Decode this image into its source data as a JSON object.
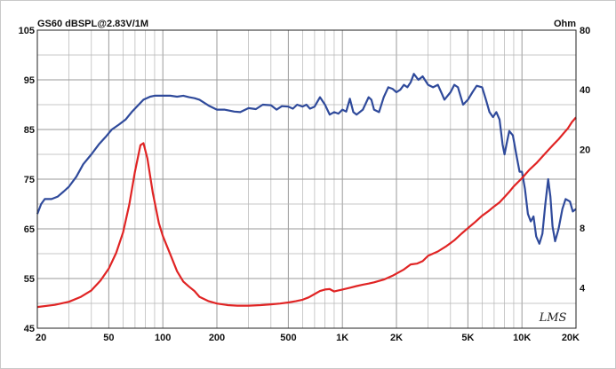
{
  "chart_data": {
    "type": "line",
    "title": "GS60 dBSPL@2.83V/1M",
    "right_axis_unit": "Ohm",
    "watermark": "LMS",
    "x_scale": "log",
    "xlim": [
      20,
      20000
    ],
    "ylim": [
      45,
      105
    ],
    "y2lim": [
      2.5,
      80
    ],
    "y2_scale": "log",
    "grid": true,
    "x_ticks": [
      {
        "value": 20,
        "label": "20"
      },
      {
        "value": 50,
        "label": "50"
      },
      {
        "value": 100,
        "label": "100"
      },
      {
        "value": 200,
        "label": "200"
      },
      {
        "value": 500,
        "label": "500"
      },
      {
        "value": 1000,
        "label": "1K"
      },
      {
        "value": 2000,
        "label": "2K"
      },
      {
        "value": 5000,
        "label": "5K"
      },
      {
        "value": 10000,
        "label": "10K"
      },
      {
        "value": 20000,
        "label": "20K"
      }
    ],
    "y_ticks": [
      {
        "value": 45,
        "label": "45"
      },
      {
        "value": 55,
        "label": "55"
      },
      {
        "value": 65,
        "label": "65"
      },
      {
        "value": 75,
        "label": "75"
      },
      {
        "value": 85,
        "label": "85"
      },
      {
        "value": 95,
        "label": "95"
      },
      {
        "value": 105,
        "label": "105"
      }
    ],
    "y2_ticks": [
      {
        "value": 4,
        "label": "4"
      },
      {
        "value": 8,
        "label": "8"
      },
      {
        "value": 20,
        "label": "20"
      },
      {
        "value": 40,
        "label": "40"
      },
      {
        "value": 80,
        "label": "80"
      }
    ],
    "colors": {
      "spl": "#2f4a9b",
      "impedance": "#e02424",
      "grid": "#b4b4b4",
      "axis": "#222222"
    },
    "series": [
      {
        "axis": "left",
        "points": [
          [
            20,
            68
          ],
          [
            21,
            70
          ],
          [
            22,
            71
          ],
          [
            24,
            71
          ],
          [
            26,
            71.5
          ],
          [
            28,
            72.5
          ],
          [
            30,
            73.5
          ],
          [
            33,
            75.5
          ],
          [
            36,
            78
          ],
          [
            40,
            80
          ],
          [
            44,
            82
          ],
          [
            48,
            83.5
          ],
          [
            52,
            85
          ],
          [
            57,
            86
          ],
          [
            62,
            87
          ],
          [
            67,
            88.5
          ],
          [
            72,
            89.7
          ],
          [
            78,
            91
          ],
          [
            85,
            91.6
          ],
          [
            90,
            91.8
          ],
          [
            100,
            91.8
          ],
          [
            110,
            91.8
          ],
          [
            120,
            91.6
          ],
          [
            130,
            91.8
          ],
          [
            140,
            91.5
          ],
          [
            150,
            91.3
          ],
          [
            160,
            91
          ],
          [
            180,
            89.8
          ],
          [
            200,
            89
          ],
          [
            220,
            89
          ],
          [
            250,
            88.6
          ],
          [
            270,
            88.5
          ],
          [
            300,
            89.3
          ],
          [
            330,
            89.1
          ],
          [
            360,
            90
          ],
          [
            400,
            89.9
          ],
          [
            430,
            89
          ],
          [
            460,
            89.7
          ],
          [
            500,
            89.6
          ],
          [
            530,
            89.2
          ],
          [
            560,
            90
          ],
          [
            600,
            89.6
          ],
          [
            630,
            90
          ],
          [
            660,
            89.2
          ],
          [
            700,
            89.6
          ],
          [
            750,
            91.5
          ],
          [
            800,
            90
          ],
          [
            850,
            88
          ],
          [
            900,
            88.5
          ],
          [
            950,
            88.2
          ],
          [
            1000,
            89
          ],
          [
            1050,
            88.6
          ],
          [
            1100,
            91.2
          ],
          [
            1150,
            88.5
          ],
          [
            1200,
            88
          ],
          [
            1300,
            89
          ],
          [
            1400,
            91.5
          ],
          [
            1450,
            91
          ],
          [
            1500,
            89
          ],
          [
            1600,
            88.5
          ],
          [
            1700,
            91.5
          ],
          [
            1800,
            93.5
          ],
          [
            1900,
            93.2
          ],
          [
            2000,
            92.5
          ],
          [
            2100,
            93
          ],
          [
            2200,
            94
          ],
          [
            2300,
            93.5
          ],
          [
            2400,
            94.5
          ],
          [
            2500,
            96.2
          ],
          [
            2650,
            95
          ],
          [
            2800,
            95.7
          ],
          [
            3000,
            94
          ],
          [
            3200,
            93.5
          ],
          [
            3400,
            94
          ],
          [
            3600,
            92
          ],
          [
            3700,
            91
          ],
          [
            3800,
            91.5
          ],
          [
            4000,
            92.5
          ],
          [
            4200,
            94
          ],
          [
            4400,
            93.5
          ],
          [
            4700,
            90
          ],
          [
            5000,
            91
          ],
          [
            5300,
            92.5
          ],
          [
            5600,
            93.8
          ],
          [
            6000,
            93.5
          ],
          [
            6300,
            91
          ],
          [
            6600,
            88.5
          ],
          [
            6900,
            87.5
          ],
          [
            7200,
            88.5
          ],
          [
            7500,
            87
          ],
          [
            7800,
            82
          ],
          [
            8000,
            80
          ],
          [
            8200,
            82
          ],
          [
            8500,
            84.7
          ],
          [
            8900,
            83.8
          ],
          [
            9300,
            80
          ],
          [
            9700,
            76.5
          ],
          [
            10000,
            76.5
          ],
          [
            10400,
            73
          ],
          [
            10800,
            68
          ],
          [
            11200,
            66.5
          ],
          [
            11600,
            67.5
          ],
          [
            12000,
            63.5
          ],
          [
            12500,
            62
          ],
          [
            13000,
            64
          ],
          [
            13500,
            70
          ],
          [
            14000,
            75
          ],
          [
            14400,
            71.5
          ],
          [
            14800,
            65.5
          ],
          [
            15300,
            62.5
          ],
          [
            16000,
            65
          ],
          [
            16800,
            69
          ],
          [
            17500,
            71
          ],
          [
            18500,
            70.5
          ],
          [
            19200,
            68.5
          ],
          [
            20000,
            69
          ]
        ]
      },
      {
        "axis": "right",
        "points": [
          [
            20,
            3.2
          ],
          [
            25,
            3.28
          ],
          [
            30,
            3.4
          ],
          [
            35,
            3.6
          ],
          [
            40,
            3.88
          ],
          [
            45,
            4.35
          ],
          [
            50,
            5
          ],
          [
            55,
            6
          ],
          [
            60,
            7.6
          ],
          [
            65,
            10.5
          ],
          [
            70,
            15.5
          ],
          [
            75,
            21
          ],
          [
            78,
            21.5
          ],
          [
            82,
            18
          ],
          [
            88,
            12
          ],
          [
            95,
            8.5
          ],
          [
            100,
            7.3
          ],
          [
            110,
            5.9
          ],
          [
            120,
            4.85
          ],
          [
            130,
            4.3
          ],
          [
            140,
            4.05
          ],
          [
            150,
            3.85
          ],
          [
            160,
            3.6
          ],
          [
            180,
            3.42
          ],
          [
            200,
            3.33
          ],
          [
            230,
            3.27
          ],
          [
            260,
            3.25
          ],
          [
            300,
            3.25
          ],
          [
            350,
            3.27
          ],
          [
            400,
            3.3
          ],
          [
            450,
            3.33
          ],
          [
            500,
            3.37
          ],
          [
            550,
            3.42
          ],
          [
            600,
            3.48
          ],
          [
            650,
            3.58
          ],
          [
            700,
            3.72
          ],
          [
            750,
            3.85
          ],
          [
            800,
            3.92
          ],
          [
            850,
            3.94
          ],
          [
            900,
            3.83
          ],
          [
            950,
            3.88
          ],
          [
            1000,
            3.92
          ],
          [
            1100,
            4
          ],
          [
            1200,
            4.08
          ],
          [
            1300,
            4.15
          ],
          [
            1400,
            4.2
          ],
          [
            1500,
            4.26
          ],
          [
            1700,
            4.4
          ],
          [
            1900,
            4.6
          ],
          [
            2000,
            4.72
          ],
          [
            2200,
            4.95
          ],
          [
            2400,
            5.25
          ],
          [
            2600,
            5.3
          ],
          [
            2800,
            5.45
          ],
          [
            3000,
            5.8
          ],
          [
            3400,
            6.1
          ],
          [
            3800,
            6.5
          ],
          [
            4200,
            6.95
          ],
          [
            4600,
            7.5
          ],
          [
            5000,
            8
          ],
          [
            5500,
            8.6
          ],
          [
            6000,
            9.25
          ],
          [
            6500,
            9.75
          ],
          [
            7000,
            10.3
          ],
          [
            7500,
            10.8
          ],
          [
            8000,
            11.5
          ],
          [
            8500,
            12.2
          ],
          [
            9000,
            13
          ],
          [
            10000,
            14.3
          ],
          [
            11000,
            15.8
          ],
          [
            12000,
            17
          ],
          [
            13000,
            18.4
          ],
          [
            14000,
            19.8
          ],
          [
            15000,
            21.2
          ],
          [
            16000,
            22.5
          ],
          [
            17000,
            24
          ],
          [
            18000,
            25.5
          ],
          [
            19000,
            27.5
          ],
          [
            20000,
            29
          ]
        ]
      }
    ]
  }
}
